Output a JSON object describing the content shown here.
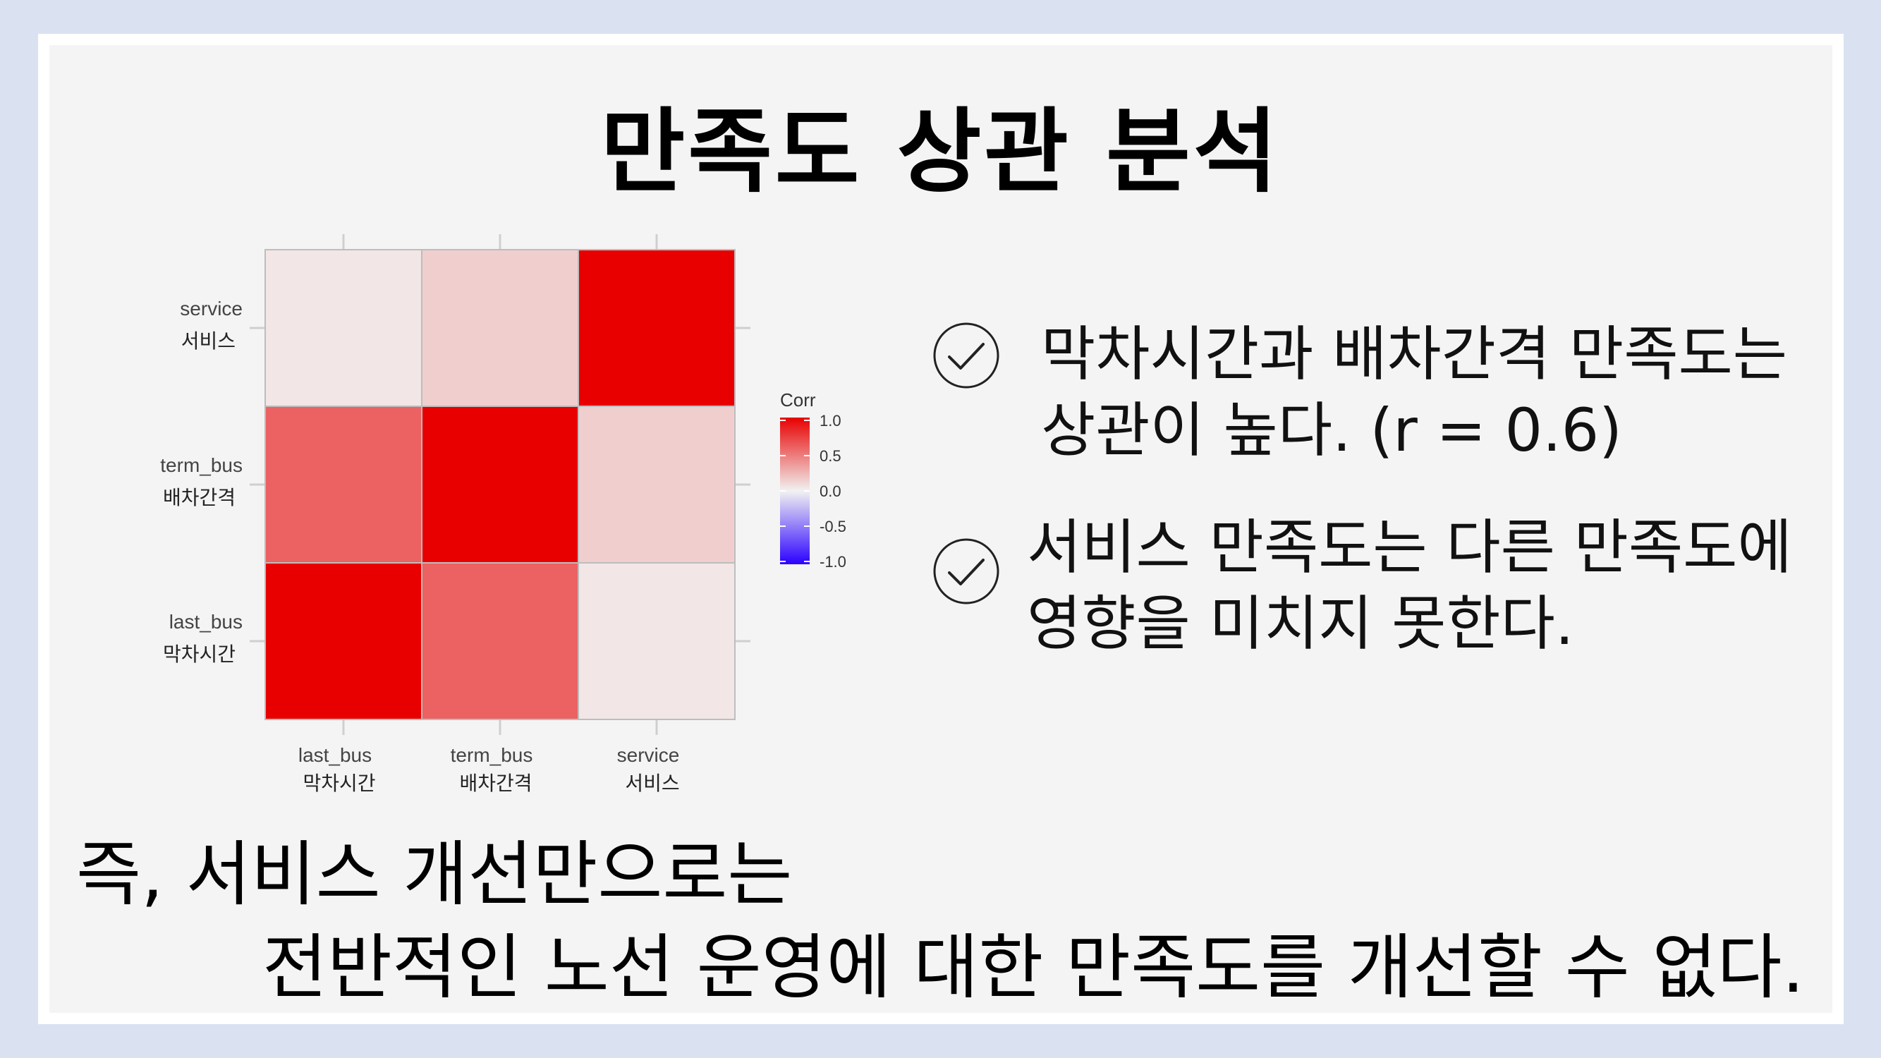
{
  "slide": {
    "title": "만족도 상관 분석",
    "bullets": [
      {
        "icon": "check-circle-icon",
        "lines": [
          "막차시간과 배차간격 만족도는",
          "상관이 높다. (r = 0.6)"
        ]
      },
      {
        "icon": "check-circle-icon",
        "lines": [
          "서비스 만족도는 다른 만족도에",
          "영향을 미치지 못한다."
        ]
      }
    ],
    "conclusion": [
      "즉, 서비스 개선만으로는",
      "전반적인 노선 운영에 대한 만족도를 개선할 수 없다."
    ]
  },
  "chart_data": {
    "type": "heatmap",
    "x_categories": [
      {
        "name": "last_bus",
        "ko": "막차시간"
      },
      {
        "name": "term_bus",
        "ko": "배차간격"
      },
      {
        "name": "service",
        "ko": "서비스"
      }
    ],
    "y_categories_top_to_bottom": [
      {
        "name": "service",
        "ko": "서비스"
      },
      {
        "name": "term_bus",
        "ko": "배차간격"
      },
      {
        "name": "last_bus",
        "ko": "막차시간"
      }
    ],
    "values": [
      [
        0.05,
        0.15,
        1.0
      ],
      [
        0.6,
        1.0,
        0.15
      ],
      [
        1.0,
        0.6,
        0.05
      ]
    ],
    "legend": {
      "title": "Corr",
      "ticks": [
        "1.0",
        "0.5",
        "0.0",
        "-0.5",
        "-1.0"
      ],
      "range": [
        -1.0,
        1.0
      ],
      "colors": {
        "high": "#e80000",
        "mid": "#f2f2f2",
        "low": "#2b00ff"
      }
    }
  }
}
